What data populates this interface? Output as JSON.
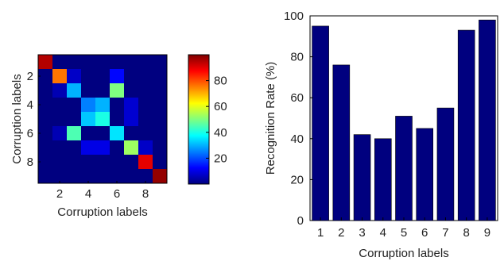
{
  "chart_data": [
    {
      "type": "heatmap",
      "xlabel": "Corruption labels",
      "ylabel": "Corruption labels",
      "x_ticks": [
        2,
        4,
        6,
        8
      ],
      "y_ticks": [
        2,
        4,
        6,
        8
      ],
      "colormap": "jet",
      "colorbar": {
        "range": [
          0,
          100
        ],
        "ticks": [
          20,
          40,
          60,
          80
        ]
      },
      "matrix": [
        [
          95,
          0,
          0,
          0,
          0,
          0,
          0,
          0,
          0
        ],
        [
          0,
          76,
          7,
          0,
          0,
          13,
          0,
          0,
          0
        ],
        [
          0,
          5,
          30,
          0,
          0,
          50,
          0,
          0,
          0
        ],
        [
          0,
          0,
          0,
          25,
          30,
          0,
          8,
          0,
          0
        ],
        [
          0,
          0,
          0,
          32,
          40,
          0,
          8,
          0,
          0
        ],
        [
          0,
          5,
          45,
          0,
          0,
          35,
          0,
          0,
          0
        ],
        [
          0,
          0,
          0,
          10,
          10,
          0,
          53,
          7,
          0
        ],
        [
          0,
          0,
          0,
          0,
          0,
          0,
          0,
          90,
          0
        ],
        [
          0,
          0,
          0,
          0,
          0,
          0,
          0,
          0,
          98
        ]
      ]
    },
    {
      "type": "bar",
      "categories": [
        "1",
        "2",
        "3",
        "4",
        "5",
        "6",
        "7",
        "8",
        "9"
      ],
      "values": [
        95,
        76,
        42,
        40,
        51,
        45,
        55,
        93,
        98
      ],
      "xlabel": "Corruption labels",
      "ylabel": "Recognition Rate (%)",
      "ylim": [
        0,
        100
      ],
      "y_ticks": [
        0,
        20,
        40,
        60,
        80,
        100
      ],
      "bar_color": "#00007f",
      "grid": false
    }
  ]
}
